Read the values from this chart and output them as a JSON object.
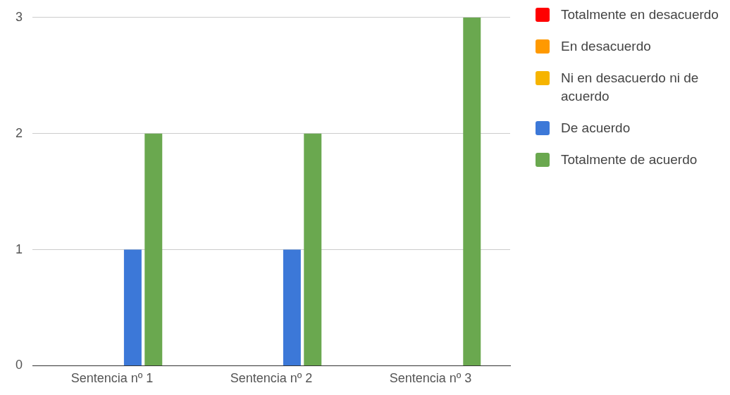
{
  "chart_data": {
    "type": "bar",
    "categories": [
      "Sentencia nº 1",
      "Sentencia nº 2",
      "Sentencia nº 3"
    ],
    "series": [
      {
        "name": "Totalmente en desacuerdo",
        "color": "#ff0000",
        "values": [
          0,
          0,
          0
        ]
      },
      {
        "name": "En desacuerdo",
        "color": "#ff9900",
        "values": [
          0,
          0,
          0
        ]
      },
      {
        "name": "Ni en desacuerdo ni de acuerdo",
        "color": "#f6b400",
        "values": [
          0,
          0,
          0
        ]
      },
      {
        "name": "De acuerdo",
        "color": "#3c78d8",
        "values": [
          1,
          1,
          0
        ]
      },
      {
        "name": "Totalmente de acuerdo",
        "color": "#6aa84f",
        "values": [
          2,
          2,
          3
        ]
      }
    ],
    "ylim": [
      0,
      3
    ],
    "yticks": [
      0,
      1,
      2,
      3
    ],
    "grid": "y",
    "legend": "right"
  }
}
